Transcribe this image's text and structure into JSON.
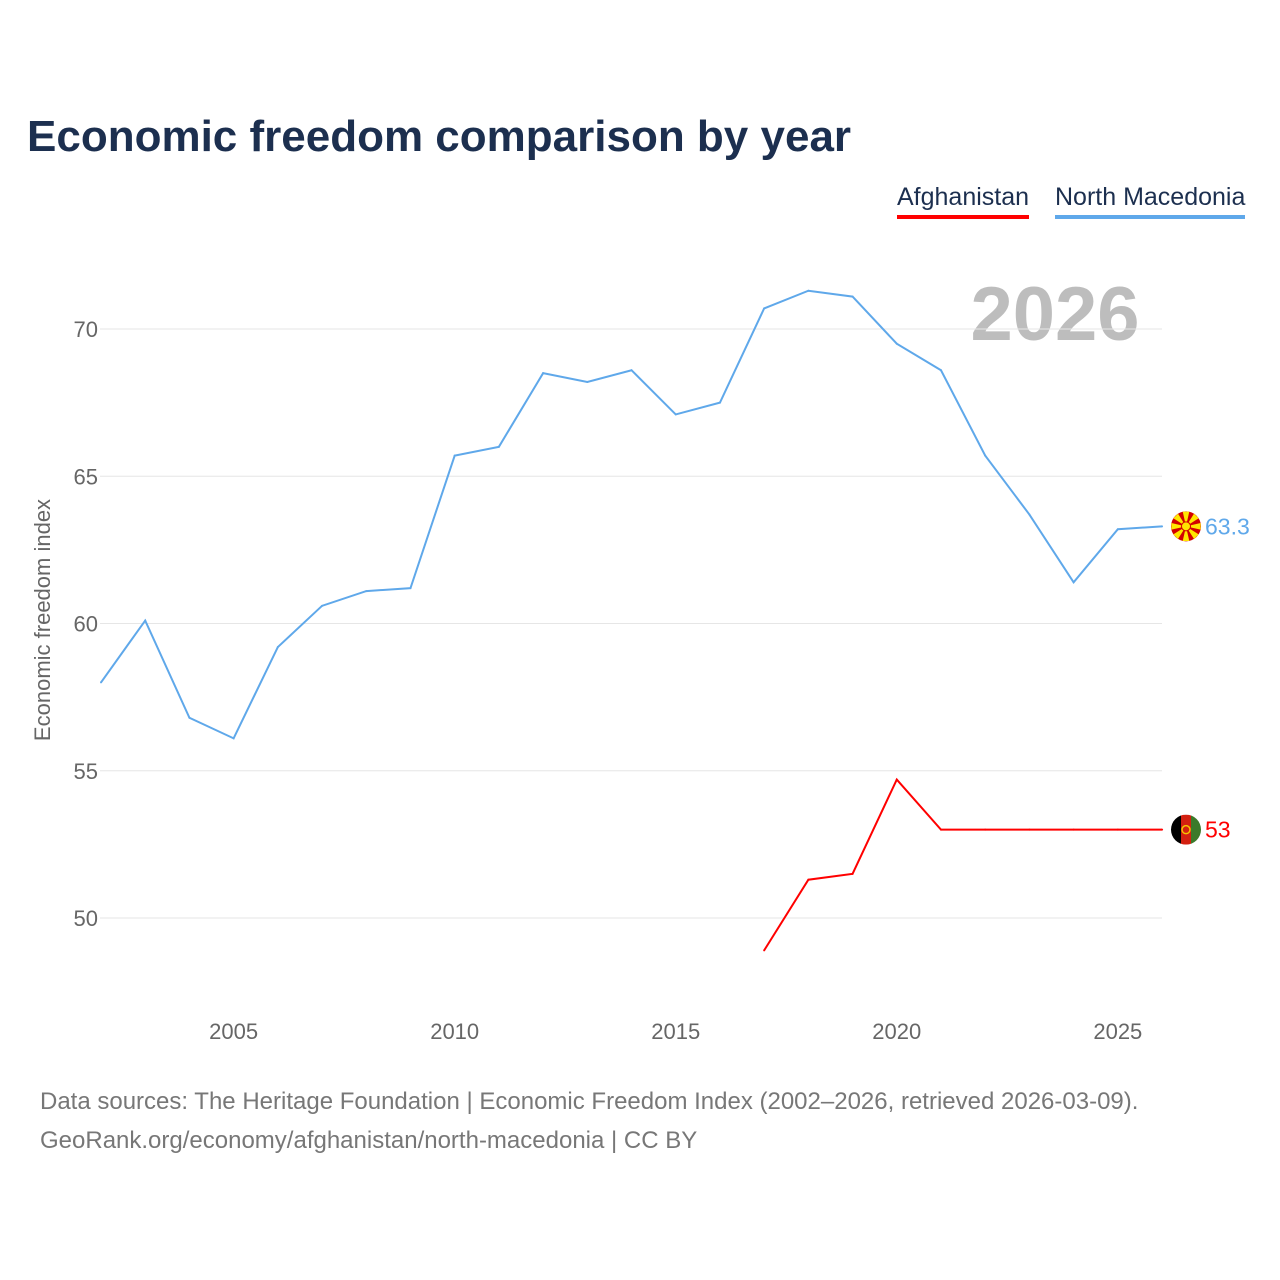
{
  "title": "Economic freedom comparison by year",
  "legend": [
    {
      "label": "Afghanistan",
      "color": "#ff0000"
    },
    {
      "label": "North Macedonia",
      "color": "#5fa8ea"
    }
  ],
  "year_watermark": "2026",
  "footer": {
    "line1": "Data sources: The Heritage Foundation | Economic Freedom Index (2002–2026, retrieved 2026-03-09).",
    "line2": "GeoRank.org/economy/afghanistan/north-macedonia | CC BY"
  },
  "chart_data": {
    "type": "line",
    "title": "Economic freedom comparison by year",
    "xlabel": "",
    "ylabel": "Economic freedom index",
    "xlim": [
      2002,
      2026
    ],
    "ylim": [
      47.5,
      72.5
    ],
    "xticks": [
      2005,
      2010,
      2015,
      2020,
      2025
    ],
    "yticks": [
      50,
      55,
      60,
      65,
      70
    ],
    "grid": true,
    "legend_position": "top-right",
    "series": [
      {
        "name": "North Macedonia",
        "color": "#5fa8ea",
        "end_label": "63.3",
        "x": [
          2002,
          2003,
          2004,
          2005,
          2006,
          2007,
          2008,
          2009,
          2010,
          2011,
          2012,
          2013,
          2014,
          2015,
          2016,
          2017,
          2018,
          2019,
          2020,
          2021,
          2022,
          2023,
          2024,
          2025,
          2026
        ],
        "y": [
          58.0,
          60.1,
          56.8,
          56.1,
          59.2,
          60.6,
          61.1,
          61.2,
          65.7,
          66.0,
          68.5,
          68.2,
          68.6,
          67.1,
          67.5,
          70.7,
          71.3,
          71.1,
          69.5,
          68.6,
          65.7,
          63.7,
          61.4,
          63.2,
          63.3
        ]
      },
      {
        "name": "Afghanistan",
        "color": "#ff0000",
        "end_label": "53",
        "x": [
          2017,
          2018,
          2019,
          2020,
          2021,
          2022,
          2023,
          2024,
          2025,
          2026
        ],
        "y": [
          48.9,
          51.3,
          51.5,
          54.7,
          53.0,
          53.0,
          53.0,
          53.0,
          53.0,
          53.0
        ]
      }
    ]
  }
}
